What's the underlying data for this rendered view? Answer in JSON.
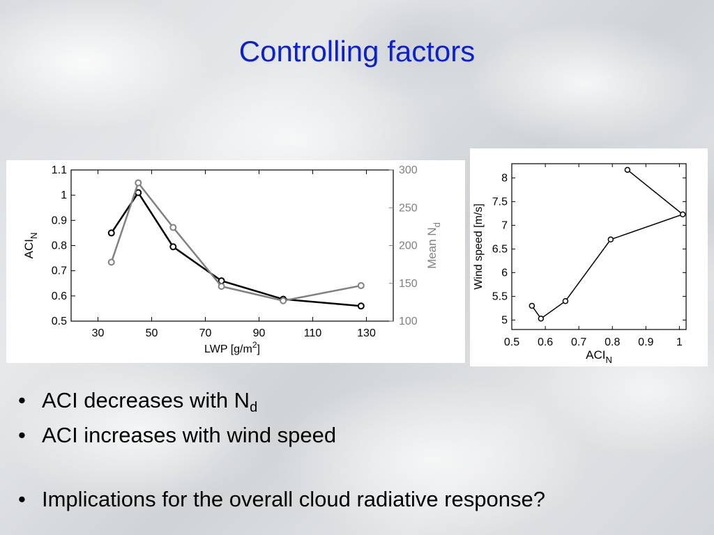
{
  "slide": {
    "title": "Controlling factors",
    "bullets": [
      {
        "text": "ACI decreases with N",
        "sub": "d"
      },
      {
        "text": "ACI increases with wind speed",
        "sub": ""
      },
      {
        "text": "Implications for the overall cloud radiative response?",
        "sub": ""
      }
    ],
    "bullet_symbol": "•"
  },
  "colors": {
    "title": "#0a1fd8",
    "series_aci": "#000000",
    "series_nd": "#808080"
  },
  "chart_data": [
    {
      "type": "line",
      "xlabel": "LWP [g/m",
      "xlabel_sup": "2",
      "xlabel_tail": "]",
      "ylabel": "ACI",
      "ylabel_sub": "N",
      "y2label": "Mean N",
      "y2label_sub": "d",
      "xlim": [
        20,
        140
      ],
      "ylim": [
        0.5,
        1.1
      ],
      "y2lim": [
        100,
        300
      ],
      "xticks": [
        30,
        50,
        70,
        90,
        110,
        130
      ],
      "yticks": [
        "0.5",
        "0.6",
        "0.7",
        "0.8",
        "0.9",
        "1",
        "1.1"
      ],
      "y2ticks": [
        "100",
        "150",
        "200",
        "250",
        "300"
      ],
      "series": [
        {
          "axis": "left",
          "color": "#000000",
          "x": [
            35,
            45,
            58,
            76,
            99,
            128
          ],
          "y": [
            0.85,
            1.01,
            0.795,
            0.66,
            0.587,
            0.56
          ]
        },
        {
          "axis": "right",
          "color": "#808080",
          "x": [
            35,
            45,
            58,
            76,
            99,
            128
          ],
          "y": [
            178,
            283,
            224,
            146,
            127,
            147
          ]
        }
      ],
      "grid": false
    },
    {
      "type": "line",
      "xlabel": "ACI",
      "xlabel_sub": "N",
      "ylabel": "Wind speed [m/s]",
      "xlim": [
        0.5,
        1.02
      ],
      "ylim": [
        4.8,
        8.3
      ],
      "xticks": [
        "0.5",
        "0.6",
        "0.7",
        "0.8",
        "0.9",
        "1"
      ],
      "yticks": [
        "5",
        "5.5",
        "6",
        "6.5",
        "7",
        "7.5",
        "8"
      ],
      "series": [
        {
          "color": "#000000",
          "x": [
            0.845,
            1.01,
            0.795,
            0.66,
            0.587,
            0.56
          ],
          "y": [
            8.17,
            7.23,
            6.7,
            5.4,
            5.03,
            5.3
          ]
        }
      ],
      "grid": false
    }
  ]
}
